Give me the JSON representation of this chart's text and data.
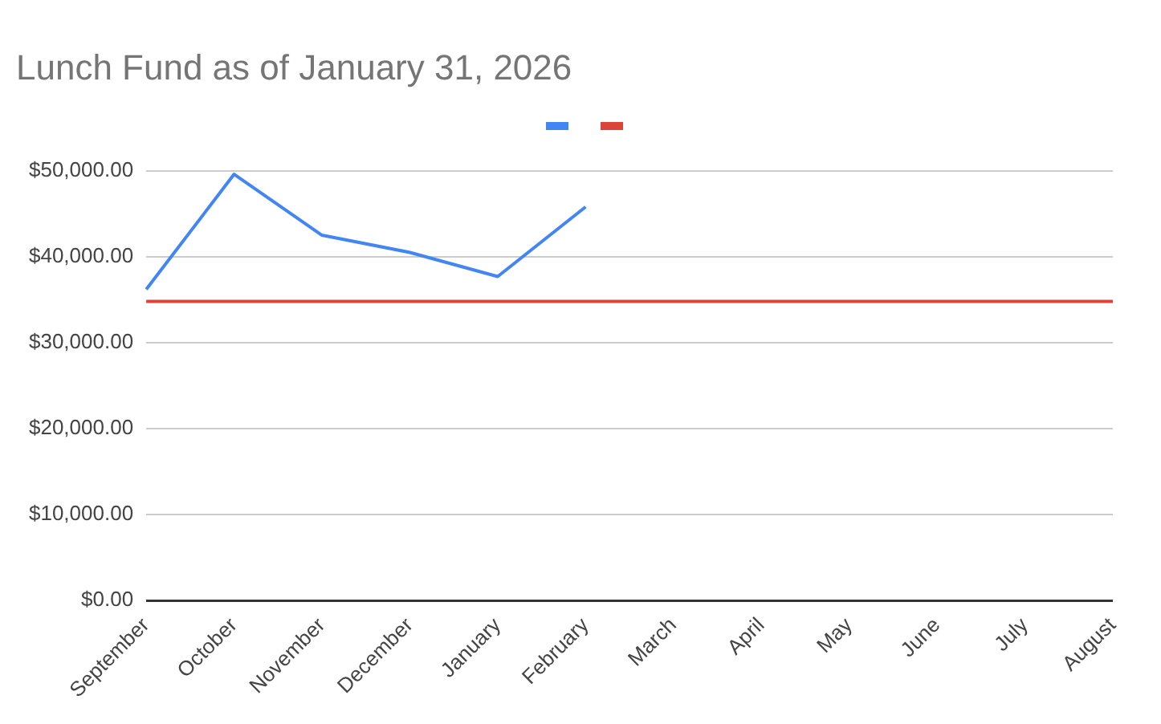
{
  "chart_data": {
    "type": "line",
    "title": "Lunch Fund as of January 31, 2026",
    "categories": [
      "September",
      "October",
      "November",
      "December",
      "January",
      "February",
      "March",
      "April",
      "May",
      "June",
      "July",
      "August"
    ],
    "series": [
      {
        "color": "#4285f4",
        "values": [
          36200,
          49600,
          42500,
          40500,
          37700,
          45800,
          null,
          null,
          null,
          null,
          null,
          null
        ]
      },
      {
        "color": "#db4437",
        "values": [
          34800,
          34800,
          34800,
          34800,
          34800,
          34800,
          34800,
          34800,
          34800,
          34800,
          34800,
          34800
        ]
      }
    ],
    "ylim": [
      0,
      50000
    ],
    "yticks": [
      {
        "value": 0,
        "label": "$0.00"
      },
      {
        "value": 10000,
        "label": "$10,000.00"
      },
      {
        "value": 20000,
        "label": "$20,000.00"
      },
      {
        "value": 30000,
        "label": "$30,000.00"
      },
      {
        "value": 40000,
        "label": "$40,000.00"
      },
      {
        "value": 50000,
        "label": "$50,000.00"
      }
    ],
    "grid": "y",
    "marker": "none",
    "line_style": "solid"
  }
}
